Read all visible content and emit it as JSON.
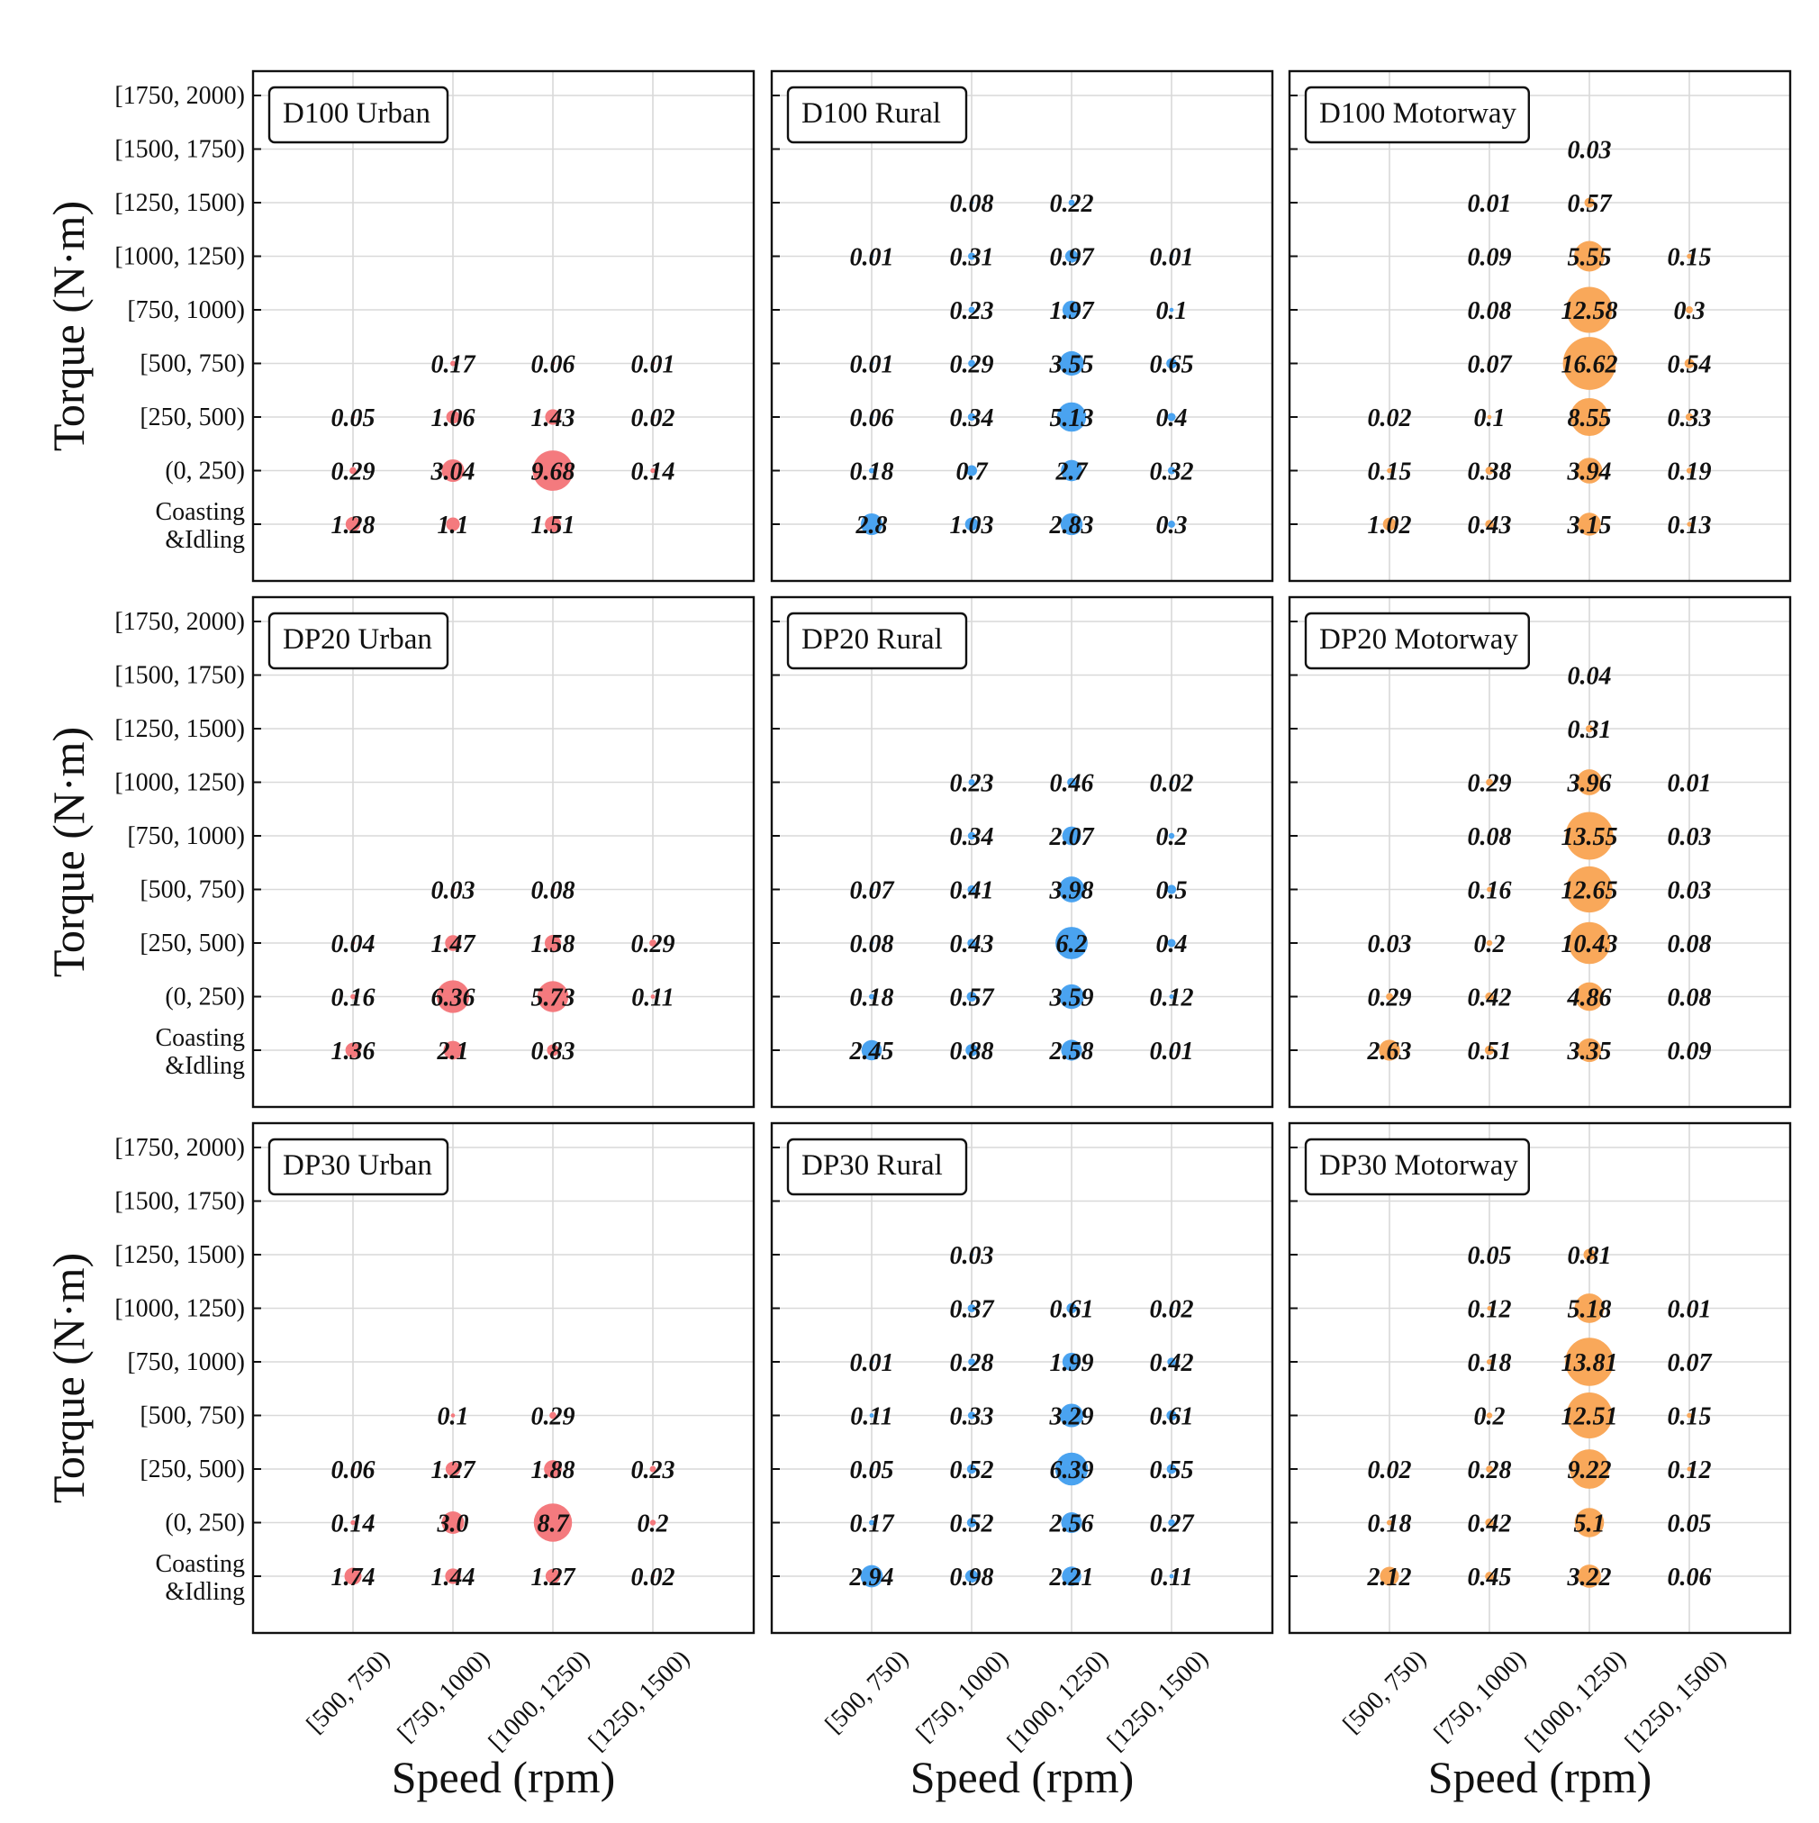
{
  "figure": {
    "y_axis_title": "Torque (N·m)",
    "x_axis_title": "Speed (rpm)",
    "y_categories": [
      "Coasting &Idling",
      "(0, 250)",
      "[250, 500)",
      "[500, 750)",
      "[750, 1000)",
      "[1000, 1250)",
      "[1250, 1500)",
      "[1500, 1750)",
      "[1750, 2000)"
    ],
    "y_category_lines": [
      [
        "Coasting",
        "&Idling"
      ],
      [
        "(0, 250)"
      ],
      [
        "[250, 500)"
      ],
      [
        "[500, 750)"
      ],
      [
        "[750, 1000)"
      ],
      [
        "[1000, 1250)"
      ],
      [
        "[1250, 1500)"
      ],
      [
        "[1500, 1750)"
      ],
      [
        "[1750, 2000)"
      ]
    ],
    "x_categories": [
      "[500, 750)",
      "[750, 1000)",
      "[1000, 1250)",
      "[1250, 1500)"
    ],
    "colors": {
      "Urban": "#f47a7e",
      "Rural": "#4aa3f0",
      "Motorway": "#f9a85a"
    }
  },
  "chart_data": [
    {
      "type": "scatter",
      "title": "D100 Urban",
      "group": "Urban",
      "row": 0,
      "col": 0,
      "points": [
        [
          0,
          0,
          1.28
        ],
        [
          1,
          0,
          1.1
        ],
        [
          2,
          0,
          1.51
        ],
        [
          0,
          1,
          0.29
        ],
        [
          1,
          1,
          3.04
        ],
        [
          2,
          1,
          9.68
        ],
        [
          3,
          1,
          0.14
        ],
        [
          0,
          2,
          0.05
        ],
        [
          1,
          2,
          1.06
        ],
        [
          2,
          2,
          1.43
        ],
        [
          3,
          2,
          0.02
        ],
        [
          1,
          3,
          0.17
        ],
        [
          2,
          3,
          0.06
        ],
        [
          3,
          3,
          0.01
        ]
      ]
    },
    {
      "type": "scatter",
      "title": "D100 Rural",
      "group": "Rural",
      "row": 0,
      "col": 1,
      "points": [
        [
          0,
          0,
          2.8
        ],
        [
          1,
          0,
          1.03
        ],
        [
          2,
          0,
          2.83
        ],
        [
          3,
          0,
          0.3
        ],
        [
          0,
          1,
          0.18
        ],
        [
          1,
          1,
          0.7
        ],
        [
          2,
          1,
          2.7
        ],
        [
          3,
          1,
          0.32
        ],
        [
          0,
          2,
          0.06
        ],
        [
          1,
          2,
          0.34
        ],
        [
          2,
          2,
          5.13
        ],
        [
          3,
          2,
          0.4
        ],
        [
          0,
          3,
          0.01
        ],
        [
          1,
          3,
          0.29
        ],
        [
          2,
          3,
          3.55
        ],
        [
          3,
          3,
          0.65
        ],
        [
          1,
          4,
          0.23
        ],
        [
          2,
          4,
          1.97
        ],
        [
          3,
          4,
          0.1
        ],
        [
          0,
          5,
          0.01
        ],
        [
          1,
          5,
          0.31
        ],
        [
          2,
          5,
          0.97
        ],
        [
          3,
          5,
          0.01
        ],
        [
          1,
          6,
          0.08
        ],
        [
          2,
          6,
          0.22
        ]
      ]
    },
    {
      "type": "scatter",
      "title": "D100 Motorway",
      "group": "Motorway",
      "row": 0,
      "col": 2,
      "points": [
        [
          0,
          0,
          1.02
        ],
        [
          1,
          0,
          0.43
        ],
        [
          2,
          0,
          3.15
        ],
        [
          3,
          0,
          0.13
        ],
        [
          0,
          1,
          0.15
        ],
        [
          1,
          1,
          0.38
        ],
        [
          2,
          1,
          3.94
        ],
        [
          3,
          1,
          0.19
        ],
        [
          0,
          2,
          0.02
        ],
        [
          1,
          2,
          0.1
        ],
        [
          2,
          2,
          8.55
        ],
        [
          3,
          2,
          0.33
        ],
        [
          1,
          3,
          0.07
        ],
        [
          2,
          3,
          16.62
        ],
        [
          3,
          3,
          0.54
        ],
        [
          1,
          4,
          0.08
        ],
        [
          2,
          4,
          12.58
        ],
        [
          3,
          4,
          0.3
        ],
        [
          1,
          5,
          0.09
        ],
        [
          2,
          5,
          5.55
        ],
        [
          3,
          5,
          0.15
        ],
        [
          1,
          6,
          0.01
        ],
        [
          2,
          6,
          0.57
        ],
        [
          2,
          7,
          0.03
        ]
      ]
    },
    {
      "type": "scatter",
      "title": "DP20 Urban",
      "group": "Urban",
      "row": 1,
      "col": 0,
      "points": [
        [
          0,
          0,
          1.36
        ],
        [
          1,
          0,
          2.1
        ],
        [
          2,
          0,
          0.83
        ],
        [
          0,
          1,
          0.16
        ],
        [
          1,
          1,
          6.36
        ],
        [
          2,
          1,
          5.73
        ],
        [
          3,
          1,
          0.11
        ],
        [
          0,
          2,
          0.04
        ],
        [
          1,
          2,
          1.47
        ],
        [
          2,
          2,
          1.58
        ],
        [
          3,
          2,
          0.29
        ],
        [
          1,
          3,
          0.03
        ],
        [
          2,
          3,
          0.08
        ]
      ]
    },
    {
      "type": "scatter",
      "title": "DP20 Rural",
      "group": "Rural",
      "row": 1,
      "col": 1,
      "points": [
        [
          0,
          0,
          2.45
        ],
        [
          1,
          0,
          0.88
        ],
        [
          2,
          0,
          2.58
        ],
        [
          3,
          0,
          0.01
        ],
        [
          0,
          1,
          0.18
        ],
        [
          1,
          1,
          0.57
        ],
        [
          2,
          1,
          3.59
        ],
        [
          3,
          1,
          0.12
        ],
        [
          0,
          2,
          0.08
        ],
        [
          1,
          2,
          0.43
        ],
        [
          2,
          2,
          6.2
        ],
        [
          3,
          2,
          0.4
        ],
        [
          0,
          3,
          0.07
        ],
        [
          1,
          3,
          0.41
        ],
        [
          2,
          3,
          3.98
        ],
        [
          3,
          3,
          0.5
        ],
        [
          1,
          4,
          0.34
        ],
        [
          2,
          4,
          2.07
        ],
        [
          3,
          4,
          0.2
        ],
        [
          1,
          5,
          0.23
        ],
        [
          2,
          5,
          0.46
        ],
        [
          3,
          5,
          0.02
        ]
      ]
    },
    {
      "type": "scatter",
      "title": "DP20 Motorway",
      "group": "Motorway",
      "row": 1,
      "col": 2,
      "points": [
        [
          0,
          0,
          2.63
        ],
        [
          1,
          0,
          0.51
        ],
        [
          2,
          0,
          3.35
        ],
        [
          3,
          0,
          0.09
        ],
        [
          0,
          1,
          0.29
        ],
        [
          1,
          1,
          0.42
        ],
        [
          2,
          1,
          4.86
        ],
        [
          3,
          1,
          0.08
        ],
        [
          0,
          2,
          0.03
        ],
        [
          1,
          2,
          0.2
        ],
        [
          2,
          2,
          10.43
        ],
        [
          3,
          2,
          0.08
        ],
        [
          1,
          3,
          0.16
        ],
        [
          2,
          3,
          12.65
        ],
        [
          3,
          3,
          0.03
        ],
        [
          1,
          4,
          0.08
        ],
        [
          2,
          4,
          13.55
        ],
        [
          3,
          4,
          0.03
        ],
        [
          1,
          5,
          0.29
        ],
        [
          2,
          5,
          3.96
        ],
        [
          3,
          5,
          0.01
        ],
        [
          2,
          6,
          0.31
        ],
        [
          2,
          7,
          0.04
        ]
      ]
    },
    {
      "type": "scatter",
      "title": "DP30 Urban",
      "group": "Urban",
      "row": 2,
      "col": 0,
      "points": [
        [
          0,
          0,
          1.74
        ],
        [
          1,
          0,
          1.44
        ],
        [
          2,
          0,
          1.27
        ],
        [
          3,
          0,
          0.02
        ],
        [
          0,
          1,
          0.14
        ],
        [
          1,
          1,
          "3.0"
        ],
        [
          2,
          1,
          8.7
        ],
        [
          3,
          1,
          0.2
        ],
        [
          0,
          2,
          0.06
        ],
        [
          1,
          2,
          1.27
        ],
        [
          2,
          2,
          1.88
        ],
        [
          3,
          2,
          0.23
        ],
        [
          1,
          3,
          0.1
        ],
        [
          2,
          3,
          0.29
        ]
      ]
    },
    {
      "type": "scatter",
      "title": "DP30 Rural",
      "group": "Rural",
      "row": 2,
      "col": 1,
      "points": [
        [
          0,
          0,
          2.94
        ],
        [
          1,
          0,
          0.98
        ],
        [
          2,
          0,
          2.21
        ],
        [
          3,
          0,
          0.11
        ],
        [
          0,
          1,
          0.17
        ],
        [
          1,
          1,
          0.52
        ],
        [
          2,
          1,
          2.56
        ],
        [
          3,
          1,
          0.27
        ],
        [
          0,
          2,
          0.05
        ],
        [
          1,
          2,
          0.52
        ],
        [
          2,
          2,
          6.39
        ],
        [
          3,
          2,
          0.55
        ],
        [
          0,
          3,
          0.11
        ],
        [
          1,
          3,
          0.33
        ],
        [
          2,
          3,
          3.29
        ],
        [
          3,
          3,
          0.61
        ],
        [
          0,
          4,
          0.01
        ],
        [
          1,
          4,
          0.28
        ],
        [
          2,
          4,
          1.99
        ],
        [
          3,
          4,
          0.42
        ],
        [
          1,
          5,
          0.37
        ],
        [
          2,
          5,
          0.61
        ],
        [
          3,
          5,
          0.02
        ],
        [
          1,
          6,
          0.03
        ]
      ]
    },
    {
      "type": "scatter",
      "title": "DP30 Motorway",
      "group": "Motorway",
      "row": 2,
      "col": 2,
      "points": [
        [
          0,
          0,
          2.12
        ],
        [
          1,
          0,
          0.45
        ],
        [
          2,
          0,
          3.22
        ],
        [
          3,
          0,
          0.06
        ],
        [
          0,
          1,
          0.18
        ],
        [
          1,
          1,
          0.42
        ],
        [
          2,
          1,
          5.1
        ],
        [
          3,
          1,
          0.05
        ],
        [
          0,
          2,
          0.02
        ],
        [
          1,
          2,
          0.28
        ],
        [
          2,
          2,
          9.22
        ],
        [
          3,
          2,
          0.12
        ],
        [
          1,
          3,
          0.2
        ],
        [
          2,
          3,
          12.51
        ],
        [
          3,
          3,
          0.15
        ],
        [
          1,
          4,
          0.18
        ],
        [
          2,
          4,
          13.81
        ],
        [
          3,
          4,
          0.07
        ],
        [
          1,
          5,
          0.12
        ],
        [
          2,
          5,
          5.18
        ],
        [
          3,
          5,
          0.01
        ],
        [
          1,
          6,
          0.05
        ],
        [
          2,
          6,
          0.81
        ]
      ]
    }
  ]
}
